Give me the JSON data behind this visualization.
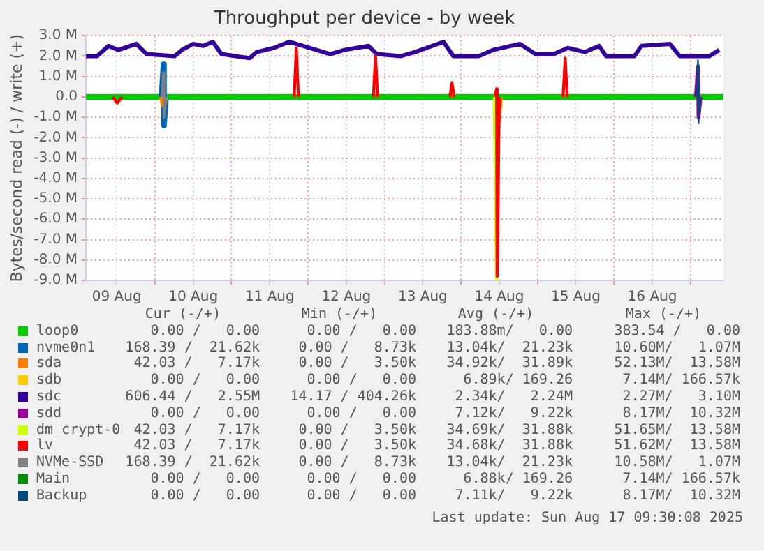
{
  "chart_data": {
    "type": "line",
    "title": "Throughput per device - by week",
    "ylabel": "Bytes/second read (-) / write (+)",
    "xlim": [
      "2025-08-09T02:20",
      "2025-08-17T10:20"
    ],
    "xticks": [
      {
        "value": "2025-08-09T12:00",
        "label": "09 Aug"
      },
      {
        "value": "2025-08-10T00:00",
        "label": null
      },
      {
        "value": "2025-08-10T12:00",
        "label": "10 Aug"
      },
      {
        "value": "2025-08-11T00:00",
        "label": null
      },
      {
        "value": "2025-08-11T12:00",
        "label": "11 Aug"
      },
      {
        "value": "2025-08-12T00:00",
        "label": null
      },
      {
        "value": "2025-08-12T12:00",
        "label": "12 Aug"
      },
      {
        "value": "2025-08-13T00:00",
        "label": null
      },
      {
        "value": "2025-08-13T12:00",
        "label": "13 Aug"
      },
      {
        "value": "2025-08-14T00:00",
        "label": null
      },
      {
        "value": "2025-08-14T12:00",
        "label": "14 Aug"
      },
      {
        "value": "2025-08-15T00:00",
        "label": null
      },
      {
        "value": "2025-08-15T12:00",
        "label": "15 Aug"
      },
      {
        "value": "2025-08-16T00:00",
        "label": null
      },
      {
        "value": "2025-08-16T12:00",
        "label": "16 Aug"
      },
      {
        "value": "2025-08-17T00:00",
        "label": null
      }
    ],
    "ylim": [
      -9000000,
      3000000
    ],
    "yticks": [
      {
        "value": 3000000,
        "label": "3.0 M"
      },
      {
        "value": 2000000,
        "label": "2.0 M"
      },
      {
        "value": 1000000,
        "label": "1.0 M"
      },
      {
        "value": 0,
        "label": "0.0"
      },
      {
        "value": -1000000,
        "label": "-1.0 M"
      },
      {
        "value": -2000000,
        "label": "-2.0 M"
      },
      {
        "value": -3000000,
        "label": "-3.0 M"
      },
      {
        "value": -4000000,
        "label": "-4.0 M"
      },
      {
        "value": -5000000,
        "label": "-5.0 M"
      },
      {
        "value": -6000000,
        "label": "-6.0 M"
      },
      {
        "value": -7000000,
        "label": "-7.0 M"
      },
      {
        "value": -8000000,
        "label": "-8.0 M"
      },
      {
        "value": -9000000,
        "label": "-9.0 M"
      }
    ],
    "grid": true,
    "legend": "bottom",
    "series": [
      {
        "name": "loop0",
        "color": "#00cc00",
        "x": [
          "2025-08-09T02:20",
          "2025-08-17T10:20"
        ],
        "values": [
          0,
          0
        ]
      },
      {
        "name": "nvme0n1",
        "color": "#0066b3",
        "x": [
          "2025-08-10T02:00",
          "2025-08-10T02:40",
          "2025-08-10T02:50",
          "2025-08-10T03:30"
        ],
        "values": [
          0,
          1600000,
          -1400000,
          0
        ]
      },
      {
        "name": "sda",
        "color": "#ff8000",
        "x": [
          "2025-08-10T02:00",
          "2025-08-10T02:40",
          "2025-08-10T03:20",
          "2025-08-12T00:00",
          "2025-08-14T11:00",
          "2025-08-14T11:40",
          "2025-08-14T12:20"
        ],
        "values": [
          0,
          -400000,
          0,
          null,
          0,
          -1200000,
          0
        ]
      },
      {
        "name": "sdb",
        "color": "#ffcc00"
      },
      {
        "name": "sdc",
        "color": "#330099",
        "x": [
          "2025-08-09T02:20",
          "2025-08-09T05:50",
          "2025-08-09T09:25",
          "2025-08-09T12:30",
          "2025-08-09T18:10",
          "2025-08-09T21:20",
          "2025-08-10T06:10",
          "2025-08-10T08:25",
          "2025-08-10T12:00",
          "2025-08-10T15:05",
          "2025-08-10T18:10",
          "2025-08-10T20:50",
          "2025-08-11T05:40",
          "2025-08-11T07:55",
          "2025-08-11T13:15",
          "2025-08-11T18:05",
          "2025-08-12T07:00",
          "2025-08-12T11:25",
          "2025-08-12T19:00",
          "2025-08-12T21:35",
          "2025-08-13T05:10",
          "2025-08-13T09:35",
          "2025-08-13T18:30",
          "2025-08-13T21:35",
          "2025-08-14T05:35",
          "2025-08-14T10:00",
          "2025-08-14T18:30",
          "2025-08-14T23:20",
          "2025-08-15T05:05",
          "2025-08-15T09:30",
          "2025-08-15T14:55",
          "2025-08-15T19:20",
          "2025-08-15T21:30",
          "2025-08-16T06:25",
          "2025-08-16T08:35",
          "2025-08-16T17:30",
          "2025-08-16T20:35",
          "2025-08-17T05:55",
          "2025-08-17T09:00"
        ],
        "values": [
          2000000,
          2000000,
          2500000,
          2300000,
          2600000,
          2100000,
          2000000,
          2300000,
          2600000,
          2500000,
          2700000,
          2100000,
          1900000,
          2200000,
          2400000,
          2700000,
          2100000,
          2300000,
          2500000,
          2100000,
          2000000,
          2200000,
          2700000,
          2000000,
          2000000,
          2300000,
          2600000,
          2100000,
          2100000,
          2400000,
          2200000,
          2500000,
          2000000,
          2000000,
          2500000,
          2600000,
          2000000,
          2000000,
          2300000
        ]
      },
      {
        "name": "sdd",
        "color": "#990099",
        "x": [
          "2025-08-17T01:40",
          "2025-08-17T02:20",
          "2025-08-17T02:30",
          "2025-08-17T03:10"
        ],
        "values": [
          0,
          1500000,
          -1000000,
          0
        ]
      },
      {
        "name": "dm_crypt-0",
        "color": "#ccff00",
        "x": [
          "2025-08-14T10:30",
          "2025-08-14T11:10",
          "2025-08-14T11:50"
        ],
        "values": [
          0,
          -8900000,
          0
        ]
      },
      {
        "name": "lv",
        "color": "#ff0000",
        "x": [
          "2025-08-09T10:40",
          "2025-08-09T12:10",
          "2025-08-09T13:40",
          "2025-08-10T12:00",
          "2025-08-11T19:40",
          "2025-08-11T20:20",
          "2025-08-11T21:00",
          "2025-08-12T08:00",
          "2025-08-12T20:30",
          "2025-08-12T21:10",
          "2025-08-12T21:50",
          "2025-08-13T08:00",
          "2025-08-13T20:30",
          "2025-08-13T21:10",
          "2025-08-13T21:50",
          "2025-08-14T04:00",
          "2025-08-14T10:40",
          "2025-08-14T11:10",
          "2025-08-14T11:20",
          "2025-08-14T12:00",
          "2025-08-14T20:00",
          "2025-08-15T08:00",
          "2025-08-15T08:40",
          "2025-08-15T09:20"
        ],
        "values": [
          0,
          -300000,
          0,
          null,
          0,
          2400000,
          0,
          null,
          0,
          2000000,
          0,
          null,
          0,
          700000,
          0,
          null,
          0,
          400000,
          -8800000,
          0,
          null,
          0,
          1900000,
          0
        ]
      },
      {
        "name": "NVMe-SSD",
        "color": "#808080",
        "x": [
          "2025-08-10T02:10",
          "2025-08-10T02:40",
          "2025-08-10T02:50",
          "2025-08-10T03:20"
        ],
        "values": [
          0,
          1200000,
          -1000000,
          0
        ]
      },
      {
        "name": "Main",
        "color": "#008f00"
      },
      {
        "name": "Backup",
        "color": "#00487d",
        "x": [
          "2025-08-17T01:50",
          "2025-08-17T02:20",
          "2025-08-17T02:30",
          "2025-08-17T03:00"
        ],
        "values": [
          0,
          1800000,
          -1300000,
          0
        ]
      }
    ],
    "annotations": [
      "Cur (-/+)",
      "Min (-/+)",
      "Avg (-/+)",
      "Max (-/+)",
      "0.00 /   0.00",
      "0.00 /   0.00",
      "183.88m/   0.00",
      "383.54 /   0.00",
      "168.39 /  21.62k",
      "0.00 /   8.73k",
      "13.04k/  21.23k",
      "10.60M/   1.07M",
      "42.03 /   7.17k",
      "0.00 /   3.50k",
      "34.92k/  31.89k",
      "52.13M/  13.58M",
      "0.00 /   0.00",
      "0.00 /   0.00",
      "6.89k/ 169.26",
      "7.14M/ 166.57k",
      "606.44 /   2.55M",
      "14.17 / 404.26k",
      "2.34k/   2.24M",
      "2.27M/   3.10M",
      "0.00 /   0.00",
      "0.00 /   0.00",
      "7.12k/   9.22k",
      "8.17M/  10.32M",
      "42.03 /   7.17k",
      "0.00 /   3.50k",
      "34.69k/  31.88k",
      "51.65M/  13.58M",
      "42.03 /   7.17k",
      "0.00 /   3.50k",
      "34.68k/  31.88k",
      "51.62M/  13.58M",
      "168.39 /  21.62k",
      "0.00 /   8.73k",
      "13.04k/  21.23k",
      "10.58M/   1.07M",
      "0.00 /   0.00",
      "0.00 /   0.00",
      "6.88k/ 169.26",
      "7.14M/ 166.57k",
      "0.00 /   0.00",
      "0.00 /   0.00",
      "7.11k/   9.22k",
      "8.17M/  10.32M",
      "Last update: Sun Aug 17 09:30:08 2025"
    ]
  }
}
